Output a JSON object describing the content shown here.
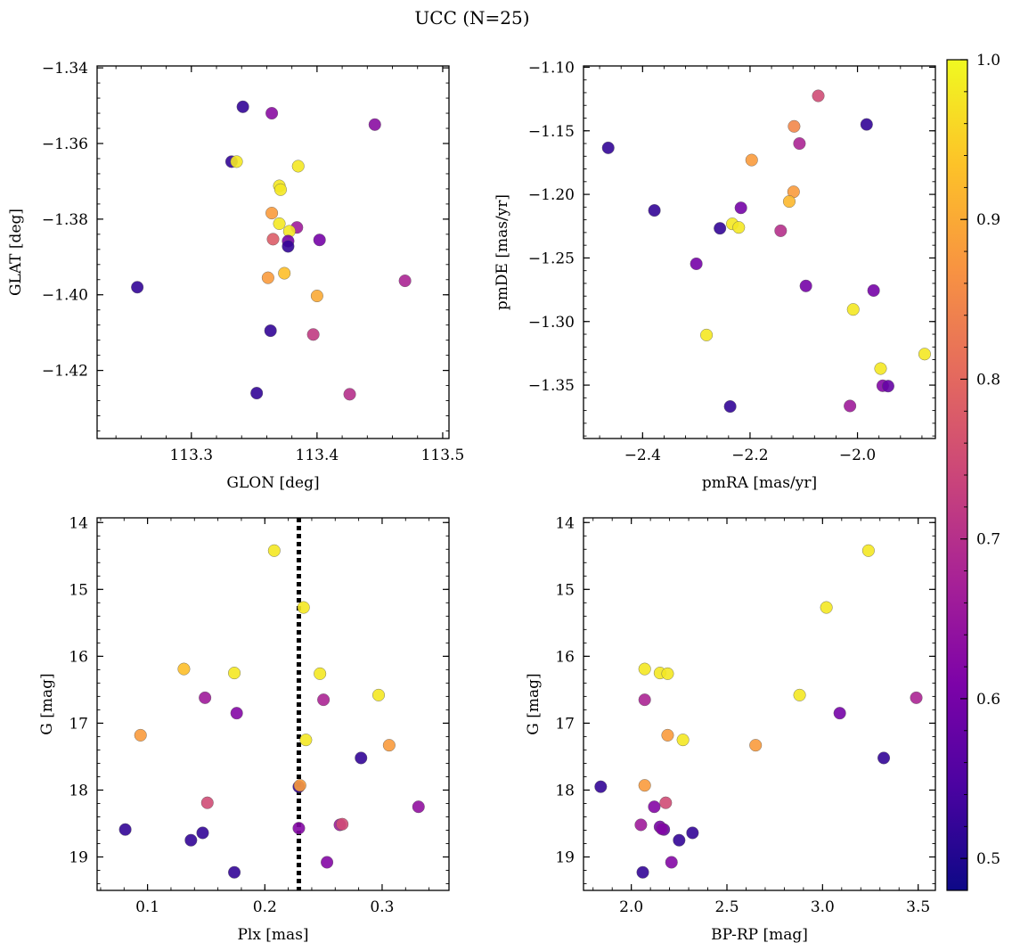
{
  "figure": {
    "title": "UCC (N=25)"
  },
  "colorbar": {
    "vmin": 0.48,
    "vmax": 1.0,
    "ticks": [
      0.5,
      0.6,
      0.7,
      0.8,
      0.9,
      1.0
    ],
    "tick_labels": [
      "0.5",
      "0.6",
      "0.7",
      "0.8",
      "0.9",
      "1.0"
    ],
    "minor_step": 0.02,
    "colormap": "plasma"
  },
  "chart_data": [
    {
      "id": "glon-glat",
      "type": "scatter",
      "xlabel": "GLON [deg]",
      "ylabel": "GLAT [deg]",
      "xlim": [
        113.225,
        113.505
      ],
      "ylim": [
        -1.438,
        -1.3395
      ],
      "y_inverted": false,
      "xticks": [
        113.3,
        113.4,
        113.5
      ],
      "xtick_labels": [
        "113.3",
        "113.4",
        "113.5"
      ],
      "xminor": 0.02,
      "yticks": [
        -1.42,
        -1.4,
        -1.38,
        -1.36,
        -1.34
      ],
      "ytick_labels": [
        "−1.42",
        "−1.40",
        "−1.38",
        "−1.36",
        "−1.34"
      ],
      "yminor": 0.004,
      "points": [
        {
          "x": 113.341,
          "y": -1.3503,
          "c": 0.52
        },
        {
          "x": 113.364,
          "y": -1.352,
          "c": 0.63
        },
        {
          "x": 113.446,
          "y": -1.355,
          "c": 0.63
        },
        {
          "x": 113.332,
          "y": -1.3648,
          "c": 0.52
        },
        {
          "x": 113.336,
          "y": -1.3648,
          "c": 0.98
        },
        {
          "x": 113.385,
          "y": -1.366,
          "c": 0.98
        },
        {
          "x": 113.37,
          "y": -1.3712,
          "c": 0.98
        },
        {
          "x": 113.371,
          "y": -1.3722,
          "c": 0.98
        },
        {
          "x": 113.364,
          "y": -1.3784,
          "c": 0.88
        },
        {
          "x": 113.37,
          "y": -1.3812,
          "c": 0.98
        },
        {
          "x": 113.384,
          "y": -1.3822,
          "c": 0.66
        },
        {
          "x": 113.378,
          "y": -1.3832,
          "c": 0.98
        },
        {
          "x": 113.365,
          "y": -1.3853,
          "c": 0.78
        },
        {
          "x": 113.377,
          "y": -1.3858,
          "c": 0.6
        },
        {
          "x": 113.402,
          "y": -1.3855,
          "c": 0.6
        },
        {
          "x": 113.377,
          "y": -1.3872,
          "c": 0.52
        },
        {
          "x": 113.374,
          "y": -1.3943,
          "c": 0.93
        },
        {
          "x": 113.361,
          "y": -1.3955,
          "c": 0.88
        },
        {
          "x": 113.257,
          "y": -1.398,
          "c": 0.52
        },
        {
          "x": 113.47,
          "y": -1.3963,
          "c": 0.68
        },
        {
          "x": 113.4,
          "y": -1.4003,
          "c": 0.9
        },
        {
          "x": 113.363,
          "y": -1.4095,
          "c": 0.52
        },
        {
          "x": 113.397,
          "y": -1.4105,
          "c": 0.72
        },
        {
          "x": 113.352,
          "y": -1.426,
          "c": 0.52
        },
        {
          "x": 113.426,
          "y": -1.4263,
          "c": 0.7
        }
      ]
    },
    {
      "id": "pm",
      "type": "scatter",
      "xlabel": "pmRA [mas/yr]",
      "ylabel": "pmDE [mas/yr]",
      "xlim": [
        -2.51,
        -1.855
      ],
      "ylim": [
        -1.392,
        -1.099
      ],
      "y_inverted": false,
      "xticks": [
        -2.4,
        -2.2,
        -2.0
      ],
      "xtick_labels": [
        "−2.4",
        "−2.2",
        "−2.0"
      ],
      "xminor": 0.04,
      "yticks": [
        -1.35,
        -1.3,
        -1.25,
        -1.2,
        -1.15,
        -1.1
      ],
      "ytick_labels": [
        "−1.35",
        "−1.30",
        "−1.25",
        "−1.20",
        "−1.15",
        "−1.10"
      ],
      "yminor": 0.01,
      "points": [
        {
          "x": -2.073,
          "y": -1.1225,
          "c": 0.75
        },
        {
          "x": -2.118,
          "y": -1.1465,
          "c": 0.85
        },
        {
          "x": -1.983,
          "y": -1.145,
          "c": 0.52
        },
        {
          "x": -2.108,
          "y": -1.16,
          "c": 0.68
        },
        {
          "x": -2.464,
          "y": -1.1634,
          "c": 0.52
        },
        {
          "x": -2.197,
          "y": -1.173,
          "c": 0.88
        },
        {
          "x": -2.119,
          "y": -1.198,
          "c": 0.88
        },
        {
          "x": -2.127,
          "y": -1.2056,
          "c": 0.92
        },
        {
          "x": -2.217,
          "y": -1.2106,
          "c": 0.6
        },
        {
          "x": -2.378,
          "y": -1.2126,
          "c": 0.52
        },
        {
          "x": -2.233,
          "y": -1.2232,
          "c": 0.98
        },
        {
          "x": -2.221,
          "y": -1.226,
          "c": 0.98
        },
        {
          "x": -2.256,
          "y": -1.2267,
          "c": 0.52
        },
        {
          "x": -2.143,
          "y": -1.2286,
          "c": 0.7
        },
        {
          "x": -2.3,
          "y": -1.2546,
          "c": 0.6
        },
        {
          "x": -2.096,
          "y": -1.272,
          "c": 0.6
        },
        {
          "x": -1.97,
          "y": -1.2756,
          "c": 0.6
        },
        {
          "x": -2.008,
          "y": -1.2905,
          "c": 0.98
        },
        {
          "x": -2.281,
          "y": -1.3106,
          "c": 0.98
        },
        {
          "x": -1.875,
          "y": -1.3256,
          "c": 0.98
        },
        {
          "x": -1.957,
          "y": -1.337,
          "c": 0.98
        },
        {
          "x": -1.953,
          "y": -1.3505,
          "c": 0.62
        },
        {
          "x": -1.943,
          "y": -1.3508,
          "c": 0.58
        },
        {
          "x": -2.014,
          "y": -1.3664,
          "c": 0.66
        },
        {
          "x": -2.237,
          "y": -1.3668,
          "c": 0.52
        }
      ]
    },
    {
      "id": "plx-g",
      "type": "scatter",
      "xlabel": "Plx [mas]",
      "ylabel": "G [mag]",
      "xlim": [
        0.057,
        0.357
      ],
      "ylim": [
        13.93,
        19.5
      ],
      "y_inverted": true,
      "xticks": [
        0.1,
        0.2,
        0.3
      ],
      "xtick_labels": [
        "0.1",
        "0.2",
        "0.3"
      ],
      "xminor": 0.02,
      "yticks": [
        14,
        15,
        16,
        17,
        18,
        19
      ],
      "ytick_labels": [
        "14",
        "15",
        "16",
        "17",
        "18",
        "19"
      ],
      "yminor": 0.2,
      "vline": {
        "x": 0.229,
        "style": "dotted",
        "color": "#000000"
      },
      "points": [
        {
          "x": 0.208,
          "y": 14.42,
          "c": 0.98
        },
        {
          "x": 0.233,
          "y": 15.27,
          "c": 0.98
        },
        {
          "x": 0.131,
          "y": 16.19,
          "c": 0.93
        },
        {
          "x": 0.174,
          "y": 16.25,
          "c": 0.98
        },
        {
          "x": 0.247,
          "y": 16.26,
          "c": 0.98
        },
        {
          "x": 0.149,
          "y": 16.62,
          "c": 0.66
        },
        {
          "x": 0.25,
          "y": 16.65,
          "c": 0.68
        },
        {
          "x": 0.297,
          "y": 16.58,
          "c": 0.98
        },
        {
          "x": 0.176,
          "y": 16.85,
          "c": 0.62
        },
        {
          "x": 0.094,
          "y": 17.18,
          "c": 0.88
        },
        {
          "x": 0.235,
          "y": 17.25,
          "c": 0.98
        },
        {
          "x": 0.306,
          "y": 17.33,
          "c": 0.88
        },
        {
          "x": 0.282,
          "y": 17.52,
          "c": 0.52
        },
        {
          "x": 0.229,
          "y": 17.95,
          "c": 0.52
        },
        {
          "x": 0.23,
          "y": 17.93,
          "c": 0.88
        },
        {
          "x": 0.151,
          "y": 18.19,
          "c": 0.75
        },
        {
          "x": 0.331,
          "y": 18.25,
          "c": 0.64
        },
        {
          "x": 0.081,
          "y": 18.59,
          "c": 0.52
        },
        {
          "x": 0.147,
          "y": 18.64,
          "c": 0.52
        },
        {
          "x": 0.137,
          "y": 18.75,
          "c": 0.52
        },
        {
          "x": 0.229,
          "y": 18.57,
          "c": 0.62
        },
        {
          "x": 0.264,
          "y": 18.52,
          "c": 0.66
        },
        {
          "x": 0.266,
          "y": 18.51,
          "c": 0.75
        },
        {
          "x": 0.253,
          "y": 19.08,
          "c": 0.62
        },
        {
          "x": 0.174,
          "y": 19.23,
          "c": 0.52
        }
      ]
    },
    {
      "id": "cmd",
      "type": "scatter",
      "xlabel": "BP-RP [mag]",
      "ylabel": "G [mag]",
      "xlim": [
        1.75,
        3.59
      ],
      "ylim": [
        13.93,
        19.5
      ],
      "y_inverted": true,
      "xticks": [
        2.0,
        2.5,
        3.0,
        3.5
      ],
      "xtick_labels": [
        "2.0",
        "2.5",
        "3.0",
        "3.5"
      ],
      "xminor": 0.1,
      "yticks": [
        14,
        15,
        16,
        17,
        18,
        19
      ],
      "ytick_labels": [
        "14",
        "15",
        "16",
        "17",
        "18",
        "19"
      ],
      "yminor": 0.2,
      "points": [
        {
          "x": 3.24,
          "y": 14.42,
          "c": 0.98
        },
        {
          "x": 3.02,
          "y": 15.27,
          "c": 0.98
        },
        {
          "x": 2.07,
          "y": 16.19,
          "c": 0.98
        },
        {
          "x": 2.15,
          "y": 16.25,
          "c": 0.98
        },
        {
          "x": 2.19,
          "y": 16.26,
          "c": 0.98
        },
        {
          "x": 2.07,
          "y": 16.65,
          "c": 0.68
        },
        {
          "x": 2.88,
          "y": 16.58,
          "c": 0.98
        },
        {
          "x": 3.49,
          "y": 16.62,
          "c": 0.68
        },
        {
          "x": 3.09,
          "y": 16.85,
          "c": 0.6
        },
        {
          "x": 2.19,
          "y": 17.18,
          "c": 0.88
        },
        {
          "x": 2.27,
          "y": 17.25,
          "c": 0.98
        },
        {
          "x": 2.65,
          "y": 17.33,
          "c": 0.88
        },
        {
          "x": 3.32,
          "y": 17.52,
          "c": 0.52
        },
        {
          "x": 1.84,
          "y": 17.95,
          "c": 0.52
        },
        {
          "x": 2.07,
          "y": 17.93,
          "c": 0.88
        },
        {
          "x": 2.18,
          "y": 18.19,
          "c": 0.75
        },
        {
          "x": 2.12,
          "y": 18.25,
          "c": 0.62
        },
        {
          "x": 2.05,
          "y": 18.52,
          "c": 0.66
        },
        {
          "x": 2.15,
          "y": 18.55,
          "c": 0.6
        },
        {
          "x": 2.17,
          "y": 18.59,
          "c": 0.58
        },
        {
          "x": 2.32,
          "y": 18.64,
          "c": 0.52
        },
        {
          "x": 2.25,
          "y": 18.75,
          "c": 0.52
        },
        {
          "x": 2.21,
          "y": 19.08,
          "c": 0.62
        },
        {
          "x": 2.06,
          "y": 19.23,
          "c": 0.52
        },
        {
          "x": 2.16,
          "y": 18.58,
          "c": 0.62
        }
      ]
    }
  ]
}
